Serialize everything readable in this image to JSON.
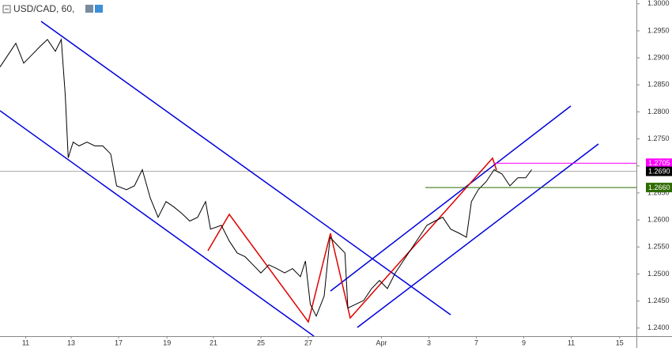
{
  "chart_data": {
    "type": "line",
    "title": "USD/CAD, 60,",
    "xlim": [
      0,
      644
    ],
    "xticks": [
      {
        "value": 26,
        "label": "11"
      },
      {
        "value": 72,
        "label": "13"
      },
      {
        "value": 120,
        "label": "17"
      },
      {
        "value": 169,
        "label": "19"
      },
      {
        "value": 216,
        "label": "21"
      },
      {
        "value": 264,
        "label": "25"
      },
      {
        "value": 312,
        "label": "27"
      },
      {
        "value": 386,
        "label": "Apr"
      },
      {
        "value": 434,
        "label": "3"
      },
      {
        "value": 482,
        "label": "7"
      },
      {
        "value": 530,
        "label": "9"
      },
      {
        "value": 578,
        "label": "11"
      },
      {
        "value": 627,
        "label": "15"
      }
    ],
    "ylim": [
      1.2385,
      1.3007
    ],
    "yticks": [
      {
        "value": 1.3,
        "label": "1.3000"
      },
      {
        "value": 1.295,
        "label": "1.2950"
      },
      {
        "value": 1.29,
        "label": "1.2900"
      },
      {
        "value": 1.285,
        "label": "1.2850"
      },
      {
        "value": 1.28,
        "label": "1.2800"
      },
      {
        "value": 1.275,
        "label": "1.2750"
      },
      {
        "value": 1.27,
        "label": "1.2700"
      },
      {
        "value": 1.265,
        "label": "1.2650"
      },
      {
        "value": 1.26,
        "label": "1.2600"
      },
      {
        "value": 1.255,
        "label": "1.2550"
      },
      {
        "value": 1.25,
        "label": "1.2500"
      },
      {
        "value": 1.245,
        "label": "1.2450"
      },
      {
        "value": 1.24,
        "label": "1.2400"
      }
    ],
    "series": [
      {
        "color": "#000000",
        "x": [
          0,
          8,
          16,
          24,
          32,
          40,
          48,
          56,
          62,
          66,
          69,
          74,
          80,
          88,
          96,
          104,
          112,
          118,
          128,
          136,
          144,
          152,
          160,
          168,
          176,
          184,
          192,
          200,
          208,
          213,
          224,
          232,
          240,
          248,
          256,
          264,
          272,
          280,
          288,
          296,
          304,
          309,
          314,
          320,
          328,
          334,
          341,
          349,
          352,
          360,
          368,
          376,
          384,
          392,
          400,
          408,
          416,
          424,
          432,
          440,
          448,
          456,
          464,
          472,
          477,
          484,
          492,
          500,
          508,
          516,
          524,
          532,
          538
        ],
        "values": [
          1.2883,
          1.2905,
          1.2927,
          1.289,
          1.2905,
          1.292,
          1.2934,
          1.2912,
          1.2934,
          1.2832,
          1.2715,
          1.2744,
          1.2737,
          1.2744,
          1.2737,
          1.2737,
          1.2722,
          1.2663,
          1.2656,
          1.2663,
          1.2693,
          1.2641,
          1.2605,
          1.2634,
          1.2624,
          1.2612,
          1.2598,
          1.2605,
          1.2634,
          1.2583,
          1.259,
          1.2561,
          1.2539,
          1.2532,
          1.2517,
          1.2502,
          1.2517,
          1.251,
          1.2502,
          1.251,
          1.2495,
          1.2524,
          1.2444,
          1.2422,
          1.2459,
          1.2568,
          1.2554,
          1.2539,
          1.2437,
          1.2444,
          1.2451,
          1.2473,
          1.2488,
          1.2473,
          1.2502,
          1.2524,
          1.2546,
          1.2568,
          1.259,
          1.2598,
          1.2605,
          1.2583,
          1.2576,
          1.2568,
          1.2634,
          1.2656,
          1.2671,
          1.2693,
          1.2685,
          1.2663,
          1.2678,
          1.2678,
          1.2693
        ]
      }
    ],
    "levels": [
      {
        "value": 1.2705,
        "label": "1.2705",
        "color": "#ff00ff"
      },
      {
        "value": 1.269,
        "label": "1.2690",
        "color": "#000000"
      },
      {
        "value": 1.266,
        "label": "1.2660",
        "color": "#2e6b00"
      }
    ]
  }
}
